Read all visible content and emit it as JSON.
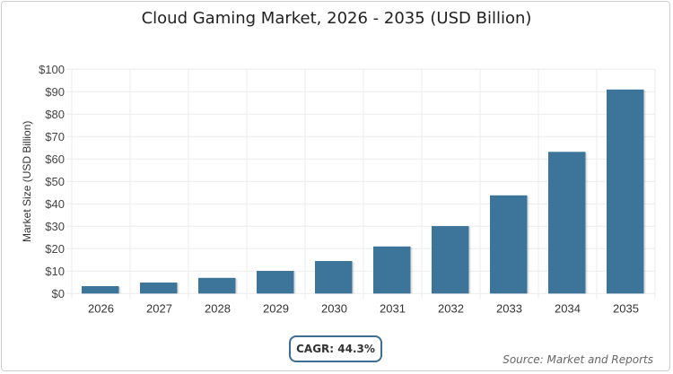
{
  "chart_data": {
    "type": "bar",
    "title": "Cloud Gaming Market, 2026 - 2035 (USD Billion)",
    "xlabel": "",
    "ylabel": "Market Size (USD Billion)",
    "categories": [
      "2026",
      "2027",
      "2028",
      "2029",
      "2030",
      "2031",
      "2032",
      "2033",
      "2034",
      "2035"
    ],
    "values": [
      3.3,
      4.9,
      7.0,
      10.1,
      14.5,
      21.0,
      30.1,
      43.8,
      63.2,
      91.0
    ],
    "ylim": [
      0,
      100
    ],
    "yticks": [
      "$0",
      "$10",
      "$20",
      "$30",
      "$40",
      "$50",
      "$60",
      "$70",
      "$80",
      "$90",
      "$100"
    ],
    "grid": true,
    "bar_color": "#3d7499"
  },
  "cagr_label": "CAGR: 44.3%",
  "source": "Source: Market and Reports"
}
